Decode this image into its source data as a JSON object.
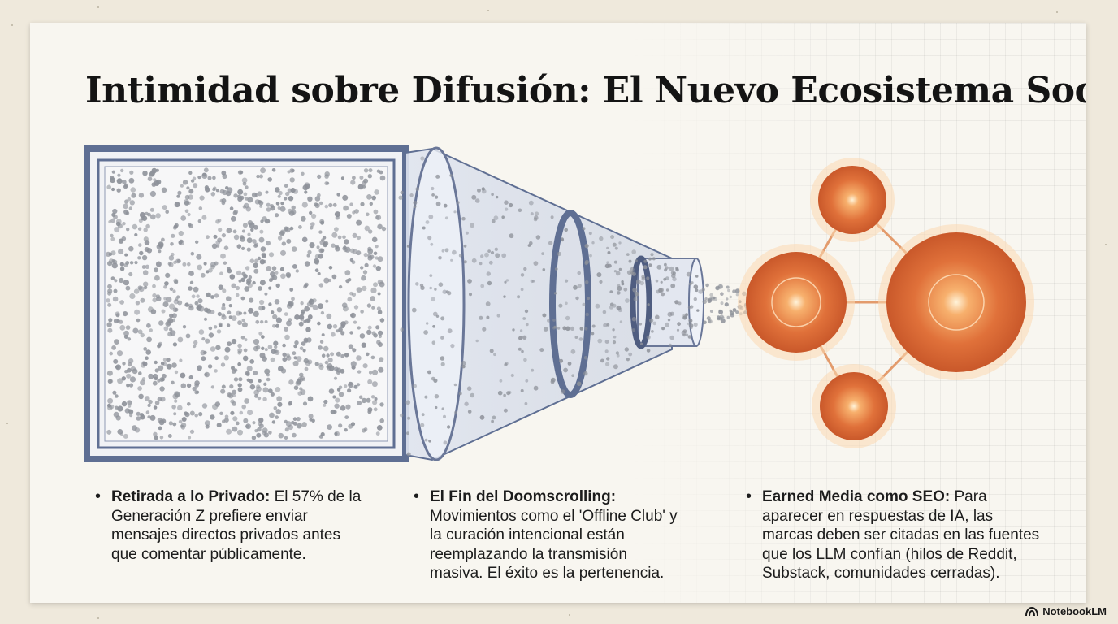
{
  "title": "Intimidad sobre Difusión: El Nuevo Ecosistema Social",
  "columns": [
    {
      "heading": "Retirada a lo Privado",
      "sep": ":",
      "line1": " El 57% de la",
      "line2": "Generación Z prefiere enviar",
      "line3": "mensajes directos privados antes",
      "line4": "que comentar públicamente.",
      "line5": ""
    },
    {
      "heading": "El Fin del Doomscrolling",
      "sep": ":",
      "line1": "",
      "line2": "Movimientos como el 'Offline Club' y",
      "line3": "la curación intencional están",
      "line4": "reemplazando la transmisión",
      "line5": "masiva. El éxito es la pertenencia."
    },
    {
      "heading": "Earned Media como SEO",
      "sep": ":",
      "line1": " Para",
      "line2": "aparecer en respuestas de IA, las",
      "line3": "marcas deben ser citadas en las fuentes",
      "line4": "que los LLM confían (hilos de Reddit,",
      "line5": "Substack, comunidades cerradas)."
    }
  ],
  "branding": {
    "label": "NotebookLM",
    "icon": "notebooklm-logo-icon"
  },
  "colors": {
    "frame_blue": "#5f6f93",
    "dot_gray": "#8e929a",
    "node_orange": "#e0713a",
    "node_glow": "#fbd9b3",
    "link_orange": "#e39b6c"
  }
}
